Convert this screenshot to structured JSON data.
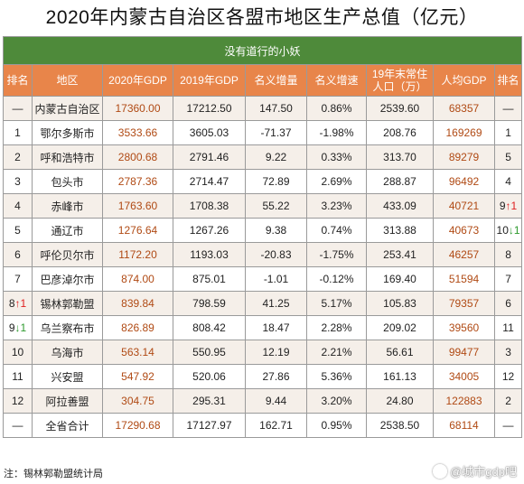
{
  "title": "2020年内蒙古自治区各盟市地区生产总值（亿元）",
  "subtitle": "没有道行的小妖",
  "headers": [
    "排名",
    "地区",
    "2020年GDP",
    "2019年GDP",
    "名义增量",
    "名义增速",
    "19年末常住人口（万）",
    "人均GDP",
    "排名"
  ],
  "rows": [
    {
      "rank": "—",
      "region": "内蒙古自治区",
      "gdp2020": "17360.00",
      "gdp2019": "17212.50",
      "increase": "147.50",
      "growth": "0.86%",
      "population": "2539.60",
      "per_capita": "68357",
      "rank2": "—"
    },
    {
      "rank": "1",
      "region": "鄂尔多斯市",
      "gdp2020": "3533.66",
      "gdp2019": "3605.03",
      "increase": "-71.37",
      "growth": "-1.98%",
      "population": "208.76",
      "per_capita": "169269",
      "rank2": "1"
    },
    {
      "rank": "2",
      "region": "呼和浩特市",
      "gdp2020": "2800.68",
      "gdp2019": "2791.46",
      "increase": "9.22",
      "growth": "0.33%",
      "population": "313.70",
      "per_capita": "89279",
      "rank2": "5"
    },
    {
      "rank": "3",
      "region": "包头市",
      "gdp2020": "2787.36",
      "gdp2019": "2714.47",
      "increase": "72.89",
      "growth": "2.69%",
      "population": "288.87",
      "per_capita": "96492",
      "rank2": "4"
    },
    {
      "rank": "4",
      "region": "赤峰市",
      "gdp2020": "1763.60",
      "gdp2019": "1708.38",
      "increase": "55.22",
      "growth": "3.23%",
      "population": "433.09",
      "per_capita": "40721",
      "rank2": "9",
      "rank2_arrow": "↑1",
      "rank2_dir": "up"
    },
    {
      "rank": "5",
      "region": "通辽市",
      "gdp2020": "1276.64",
      "gdp2019": "1267.26",
      "increase": "9.38",
      "growth": "0.74%",
      "population": "313.88",
      "per_capita": "40673",
      "rank2": "10",
      "rank2_arrow": "↓1",
      "rank2_dir": "down"
    },
    {
      "rank": "6",
      "region": "呼伦贝尔市",
      "gdp2020": "1172.20",
      "gdp2019": "1193.03",
      "increase": "-20.83",
      "growth": "-1.75%",
      "population": "253.41",
      "per_capita": "46257",
      "rank2": "8"
    },
    {
      "rank": "7",
      "region": "巴彦淖尔市",
      "gdp2020": "874.00",
      "gdp2019": "875.01",
      "increase": "-1.01",
      "growth": "-0.12%",
      "population": "169.40",
      "per_capita": "51594",
      "rank2": "7"
    },
    {
      "rank": "8",
      "rank_arrow": "↑1",
      "rank_dir": "up",
      "region": "锡林郭勒盟",
      "gdp2020": "839.84",
      "gdp2019": "798.59",
      "increase": "41.25",
      "growth": "5.17%",
      "population": "105.83",
      "per_capita": "79357",
      "rank2": "6"
    },
    {
      "rank": "9",
      "rank_arrow": "↓1",
      "rank_dir": "down",
      "region": "乌兰察布市",
      "gdp2020": "826.89",
      "gdp2019": "808.42",
      "increase": "18.47",
      "growth": "2.28%",
      "population": "209.02",
      "per_capita": "39560",
      "rank2": "11"
    },
    {
      "rank": "10",
      "region": "乌海市",
      "gdp2020": "563.14",
      "gdp2019": "550.95",
      "increase": "12.19",
      "growth": "2.21%",
      "population": "56.61",
      "per_capita": "99477",
      "rank2": "3"
    },
    {
      "rank": "11",
      "region": "兴安盟",
      "gdp2020": "547.92",
      "gdp2019": "520.06",
      "increase": "27.86",
      "growth": "5.36%",
      "population": "161.13",
      "per_capita": "34005",
      "rank2": "12"
    },
    {
      "rank": "12",
      "region": "阿拉善盟",
      "gdp2020": "304.75",
      "gdp2019": "295.31",
      "increase": "9.44",
      "growth": "3.20%",
      "population": "24.80",
      "per_capita": "122883",
      "rank2": "2"
    },
    {
      "rank": "—",
      "region": "全省合计",
      "gdp2020": "17290.68",
      "gdp2019": "17127.97",
      "increase": "162.71",
      "growth": "0.95%",
      "population": "2538.50",
      "per_capita": "68114",
      "rank2": "—"
    }
  ],
  "footnote": "注：锡林郭勒盟统计局",
  "watermark": "@城市gdp吧",
  "colors": {
    "subtitle_bg": "#4e8a3a",
    "header_bg": "#e8854a",
    "value_highlight": "#b04a14",
    "rank_up": "#e02020",
    "rank_down": "#2e9a2e"
  }
}
